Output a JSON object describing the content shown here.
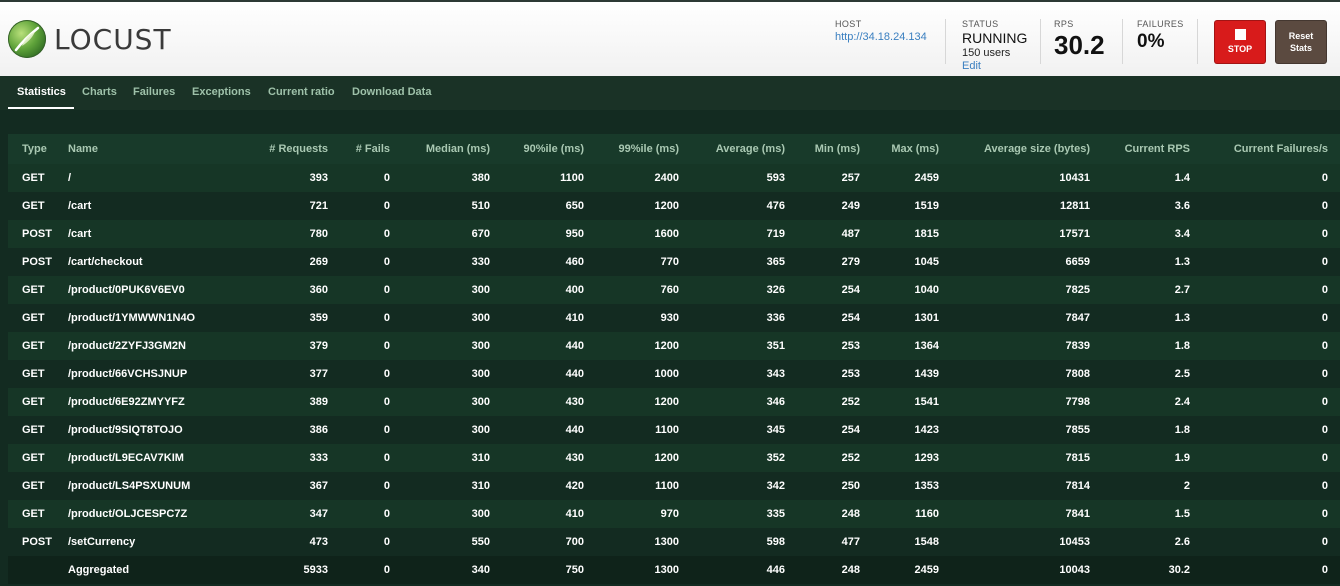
{
  "header": {
    "logo_text": "LOCUST",
    "host_label": "HOST",
    "host_value": "http://34.18.24.134",
    "status_label": "STATUS",
    "status_value": "RUNNING",
    "users": "150 users",
    "edit_label": "Edit",
    "rps_label": "RPS",
    "rps_value": "30.2",
    "failures_label": "FAILURES",
    "failures_value": "0%",
    "stop_label": "STOP",
    "reset_label_1": "Reset",
    "reset_label_2": "Stats"
  },
  "tabs": [
    {
      "label": "Statistics",
      "active": true
    },
    {
      "label": "Charts",
      "active": false
    },
    {
      "label": "Failures",
      "active": false
    },
    {
      "label": "Exceptions",
      "active": false
    },
    {
      "label": "Current ratio",
      "active": false
    },
    {
      "label": "Download Data",
      "active": false
    }
  ],
  "table": {
    "columns": [
      "Type",
      "Name",
      "# Requests",
      "# Fails",
      "Median (ms)",
      "90%ile (ms)",
      "99%ile (ms)",
      "Average (ms)",
      "Min (ms)",
      "Max (ms)",
      "Average size (bytes)",
      "Current RPS",
      "Current Failures/s"
    ],
    "rows": [
      [
        "GET",
        "/",
        "393",
        "0",
        "380",
        "1100",
        "2400",
        "593",
        "257",
        "2459",
        "10431",
        "1.4",
        "0"
      ],
      [
        "GET",
        "/cart",
        "721",
        "0",
        "510",
        "650",
        "1200",
        "476",
        "249",
        "1519",
        "12811",
        "3.6",
        "0"
      ],
      [
        "POST",
        "/cart",
        "780",
        "0",
        "670",
        "950",
        "1600",
        "719",
        "487",
        "1815",
        "17571",
        "3.4",
        "0"
      ],
      [
        "POST",
        "/cart/checkout",
        "269",
        "0",
        "330",
        "460",
        "770",
        "365",
        "279",
        "1045",
        "6659",
        "1.3",
        "0"
      ],
      [
        "GET",
        "/product/0PUK6V6EV0",
        "360",
        "0",
        "300",
        "400",
        "760",
        "326",
        "254",
        "1040",
        "7825",
        "2.7",
        "0"
      ],
      [
        "GET",
        "/product/1YMWWN1N4O",
        "359",
        "0",
        "300",
        "410",
        "930",
        "336",
        "254",
        "1301",
        "7847",
        "1.3",
        "0"
      ],
      [
        "GET",
        "/product/2ZYFJ3GM2N",
        "379",
        "0",
        "300",
        "440",
        "1200",
        "351",
        "253",
        "1364",
        "7839",
        "1.8",
        "0"
      ],
      [
        "GET",
        "/product/66VCHSJNUP",
        "377",
        "0",
        "300",
        "440",
        "1000",
        "343",
        "253",
        "1439",
        "7808",
        "2.5",
        "0"
      ],
      [
        "GET",
        "/product/6E92ZMYYFZ",
        "389",
        "0",
        "300",
        "430",
        "1200",
        "346",
        "252",
        "1541",
        "7798",
        "2.4",
        "0"
      ],
      [
        "GET",
        "/product/9SIQT8TOJO",
        "386",
        "0",
        "300",
        "440",
        "1100",
        "345",
        "254",
        "1423",
        "7855",
        "1.8",
        "0"
      ],
      [
        "GET",
        "/product/L9ECAV7KIM",
        "333",
        "0",
        "310",
        "430",
        "1200",
        "352",
        "252",
        "1293",
        "7815",
        "1.9",
        "0"
      ],
      [
        "GET",
        "/product/LS4PSXUNUM",
        "367",
        "0",
        "310",
        "420",
        "1100",
        "342",
        "250",
        "1353",
        "7814",
        "2",
        "0"
      ],
      [
        "GET",
        "/product/OLJCESPC7Z",
        "347",
        "0",
        "300",
        "410",
        "970",
        "335",
        "248",
        "1160",
        "7841",
        "1.5",
        "0"
      ],
      [
        "POST",
        "/setCurrency",
        "473",
        "0",
        "550",
        "700",
        "1300",
        "598",
        "477",
        "1548",
        "10453",
        "2.6",
        "0"
      ]
    ],
    "aggregated": [
      "",
      "Aggregated",
      "5933",
      "0",
      "340",
      "750",
      "1300",
      "446",
      "248",
      "2459",
      "10043",
      "30.2",
      "0"
    ]
  },
  "colors": {
    "background": "#132b21",
    "header_text": "#a9c8b2",
    "stop_button": "#d81b1b",
    "reset_button": "#5b4a40",
    "link": "#3a7fc0"
  }
}
